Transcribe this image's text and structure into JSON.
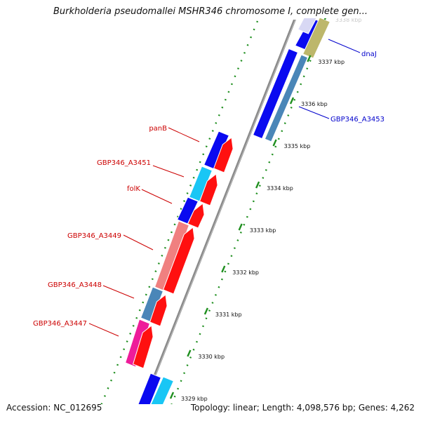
{
  "title": "Burkholderia pseudomallei MSHR346 chromosome I, complete gen...",
  "footer": {
    "accession": "Accession: NC_012695",
    "summary": "Topology: linear; Length: 4,098,576 bp; Genes: 4,262"
  },
  "ruler": {
    "unit": "kbp",
    "ticks": [
      {
        "label": "3329 kbp"
      },
      {
        "label": "3330 kbp"
      },
      {
        "label": "3331 kbp"
      },
      {
        "label": "3332 kbp"
      },
      {
        "label": "3333 kbp"
      },
      {
        "label": "3334 kbp"
      },
      {
        "label": "3335 kbp"
      },
      {
        "label": "3336 kbp"
      },
      {
        "label": "3337 kbp"
      },
      {
        "label": "3338 kbp"
      }
    ]
  },
  "gene_labels": {
    "panB": "panB",
    "a3451": "GBP346_A3451",
    "folK": "folK",
    "a3449": "GBP346_A3449",
    "a3448": "GBP346_A3448",
    "a3447": "GBP346_A3447",
    "dnaJ": "dnaJ",
    "a3453": "GBP346_A3453"
  },
  "colors": {
    "gene_blue": "#0a0af0",
    "cds_red": "#ff1010",
    "cyan": "#19c6f5",
    "salmon": "#f08080",
    "steel": "#4a86b8",
    "magenta": "#ee1c9a",
    "khaki": "#bdb76b",
    "ruler_green": "#1f8f1f",
    "left_label": "#cc0000",
    "right_label": "#0000cc",
    "backbone": "#888888"
  }
}
